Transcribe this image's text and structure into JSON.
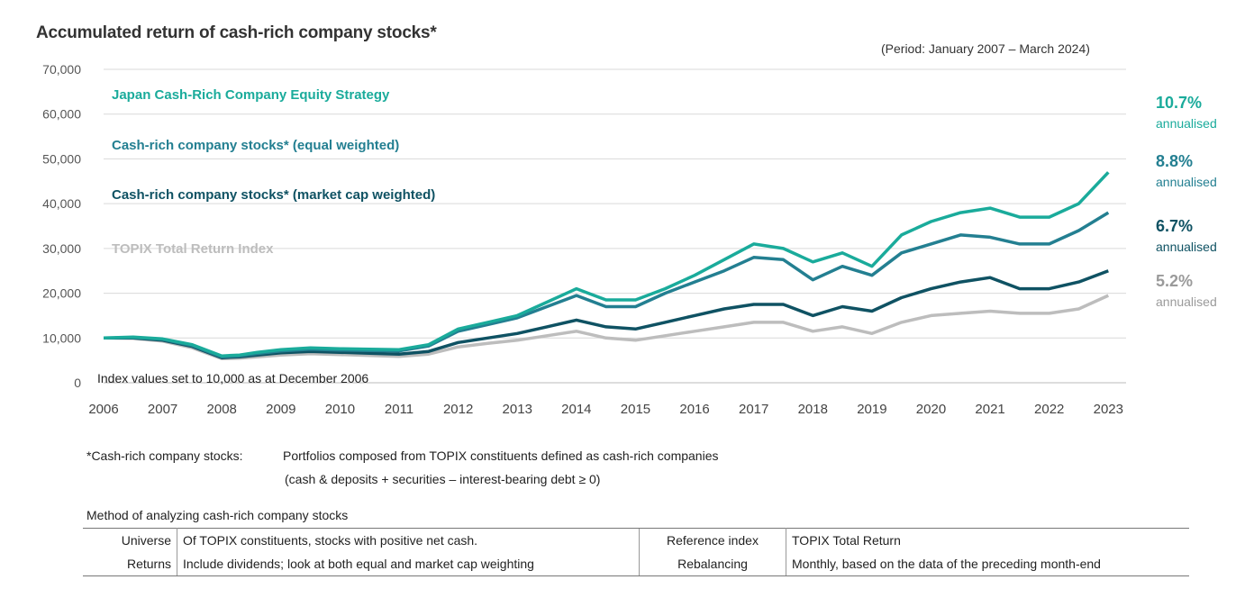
{
  "title": "Accumulated return of cash-rich company stocks*",
  "period": "(Period: January 2007 – March 2024)",
  "note": "Index values set to 10,000 as at December 2006",
  "chart_data": {
    "type": "line",
    "title": "Accumulated return of cash-rich company stocks*",
    "ylim": [
      0,
      70000
    ],
    "yticks": [
      "0",
      "10,000",
      "20,000",
      "30,000",
      "40,000",
      "50,000",
      "60,000",
      "70,000"
    ],
    "xticks": [
      "2006",
      "2007",
      "2008",
      "2009",
      "2010",
      "2011",
      "2012",
      "2013",
      "2014",
      "2015",
      "2016",
      "2017",
      "2018",
      "2019",
      "2020",
      "2021",
      "2022",
      "2023"
    ],
    "grid": "horizontal",
    "x": [
      2006.0,
      2006.5,
      2007.0,
      2007.5,
      2008.0,
      2008.3,
      2008.6,
      2009.0,
      2009.5,
      2010.0,
      2010.5,
      2011.0,
      2011.5,
      2012.0,
      2012.5,
      2013.0,
      2013.5,
      2014.0,
      2014.5,
      2015.0,
      2015.5,
      2016.0,
      2016.5,
      2017.0,
      2017.5,
      2018.0,
      2018.5,
      2019.0,
      2019.5,
      2020.0,
      2020.5,
      2021.0,
      2021.5,
      2022.0,
      2022.5,
      2023.0
    ],
    "series": [
      {
        "name": "Japan Cash-Rich Company Equity Strategy",
        "color": "#1aab9b",
        "annualised": "10.7%",
        "values": [
          10000,
          10200,
          9800,
          8500,
          6000,
          6200,
          6800,
          7400,
          7800,
          7600,
          7500,
          7400,
          8500,
          12000,
          13500,
          15000,
          18000,
          21000,
          18500,
          18500,
          21000,
          24000,
          27500,
          31000,
          30000,
          27000,
          29000,
          26000,
          33000,
          36000,
          38000,
          39000,
          37000,
          37000,
          40000,
          47000
        ]
      },
      {
        "name": "Cash-rich company stocks* (equal weighted)",
        "color": "#237f91",
        "annualised": "8.8%",
        "values": [
          10000,
          10100,
          9700,
          8300,
          5800,
          6000,
          6500,
          7100,
          7500,
          7300,
          7200,
          7100,
          8200,
          11500,
          13000,
          14500,
          17000,
          19500,
          17000,
          17000,
          20000,
          22500,
          25000,
          28000,
          27500,
          23000,
          26000,
          24000,
          29000,
          31000,
          33000,
          32500,
          31000,
          31000,
          34000,
          38000
        ]
      },
      {
        "name": "Cash-rich company stocks* (market cap weighted)",
        "color": "#0f5263",
        "annualised": "6.7%",
        "values": [
          10000,
          10000,
          9500,
          8100,
          5600,
          5800,
          6200,
          6700,
          7000,
          6800,
          6600,
          6400,
          7000,
          9000,
          10000,
          11000,
          12500,
          14000,
          12500,
          12000,
          13500,
          15000,
          16500,
          17500,
          17500,
          15000,
          17000,
          16000,
          19000,
          21000,
          22500,
          23500,
          21000,
          21000,
          22500,
          25000
        ]
      },
      {
        "name": "TOPIX Total Return Index",
        "color": "#bdbdbd",
        "annualised": "5.2%",
        "values": [
          10000,
          9900,
          9300,
          7800,
          5400,
          5500,
          5800,
          6200,
          6500,
          6300,
          6100,
          5900,
          6400,
          8000,
          8800,
          9500,
          10500,
          11500,
          10000,
          9500,
          10500,
          11500,
          12500,
          13500,
          13500,
          11500,
          12500,
          11000,
          13500,
          15000,
          15500,
          16000,
          15500,
          15500,
          16500,
          19500
        ]
      }
    ],
    "annualised_label": "annualised"
  },
  "footnote": {
    "label": "*Cash-rich company stocks:",
    "text1": "Portfolios composed from TOPIX constituents defined as cash-rich companies",
    "text2": "(cash & deposits + securities – interest-bearing debt ≥ 0)"
  },
  "method": {
    "title": "Method of analyzing cash-rich company stocks",
    "rows": [
      {
        "k1": "Universe",
        "v1": "Of TOPIX constituents, stocks with positive net cash.",
        "k2": "Reference  index",
        "v2": "TOPIX Total Return"
      },
      {
        "k1": "Returns",
        "v1": "Include dividends; look at both equal and market cap weighting",
        "k2": "Rebalancing",
        "v2": "Monthly, based on the data of the preceding month-end"
      }
    ]
  }
}
